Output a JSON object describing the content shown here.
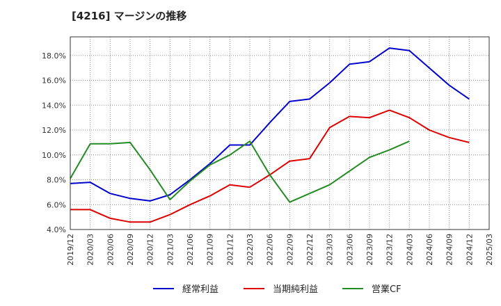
{
  "title": "[4216]  マージンの推移",
  "chart_data": {
    "type": "line",
    "title": "[4216]  マージンの推移",
    "x": [
      "2019/12",
      "2020/03",
      "2020/06",
      "2020/09",
      "2020/12",
      "2021/03",
      "2021/06",
      "2021/09",
      "2021/12",
      "2022/03",
      "2022/06",
      "2022/09",
      "2022/12",
      "2023/03",
      "2023/06",
      "2023/09",
      "2023/12",
      "2024/03",
      "2024/06",
      "2024/09",
      "2024/12",
      "2025/03"
    ],
    "ylim": [
      4.0,
      19.5
    ],
    "yticks": [
      4.0,
      6.0,
      8.0,
      10.0,
      12.0,
      14.0,
      16.0,
      18.0
    ],
    "ytick_labels": [
      "4.0%",
      "6.0%",
      "8.0%",
      "10.0%",
      "12.0%",
      "14.0%",
      "16.0%",
      "18.0%"
    ],
    "grid": true,
    "legend_position": "bottom",
    "series": [
      {
        "name": "経常利益",
        "color": "#0000cc",
        "values": [
          7.7,
          7.8,
          6.9,
          6.5,
          6.3,
          6.8,
          8.0,
          9.3,
          10.8,
          10.8,
          12.6,
          14.3,
          14.5,
          15.8,
          17.3,
          17.5,
          18.6,
          18.4,
          17.0,
          15.6,
          14.5,
          null
        ]
      },
      {
        "name": "当期純利益",
        "color": "#dd0000",
        "values": [
          5.6,
          5.6,
          4.9,
          4.6,
          4.6,
          5.2,
          6.0,
          6.7,
          7.6,
          7.4,
          8.4,
          9.5,
          9.7,
          12.2,
          13.1,
          13.0,
          13.6,
          13.0,
          12.0,
          11.4,
          11.0,
          null
        ]
      },
      {
        "name": "営業CF",
        "color": "#228B22",
        "values": [
          8.1,
          10.9,
          10.9,
          11.0,
          8.8,
          6.4,
          7.9,
          9.2,
          10.0,
          11.1,
          8.4,
          6.2,
          6.9,
          7.6,
          8.7,
          9.8,
          10.4,
          11.1,
          null,
          null,
          null,
          null
        ]
      }
    ]
  }
}
